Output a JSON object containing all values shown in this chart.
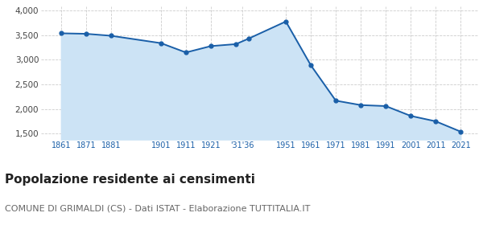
{
  "years": [
    1861,
    1871,
    1881,
    1901,
    1911,
    1921,
    1931,
    1936,
    1951,
    1961,
    1971,
    1981,
    1991,
    2001,
    2011,
    2021
  ],
  "population": [
    3540,
    3530,
    3490,
    3340,
    3150,
    3280,
    3320,
    3430,
    3780,
    2890,
    2170,
    2080,
    2060,
    1860,
    1750,
    1540
  ],
  "yticks": [
    1500,
    2000,
    2500,
    3000,
    3500,
    4000
  ],
  "ylim": [
    1380,
    4080
  ],
  "xlim_left": 1853,
  "xlim_right": 2028,
  "line_color": "#1a5fa8",
  "fill_color": "#cce3f5",
  "marker_color": "#1a5fa8",
  "grid_color": "#cccccc",
  "background_color": "#ffffff",
  "title": "Popolazione residente ai censimenti",
  "subtitle": "COMUNE DI GRIMALDI (CS) - Dati ISTAT - Elaborazione TUTTITALIA.IT",
  "title_fontsize": 11,
  "subtitle_fontsize": 8,
  "custom_ticks": [
    1861,
    1871,
    1881,
    1901,
    1911,
    1921,
    1933.5,
    1951,
    1961,
    1971,
    1981,
    1991,
    2001,
    2011,
    2021
  ],
  "custom_labels": [
    "1861",
    "1871",
    "1881",
    "1901",
    "1911",
    "1921",
    "'31'36",
    "1951",
    "1961",
    "1971",
    "1981",
    "1991",
    "2001",
    "2011",
    "2021"
  ]
}
